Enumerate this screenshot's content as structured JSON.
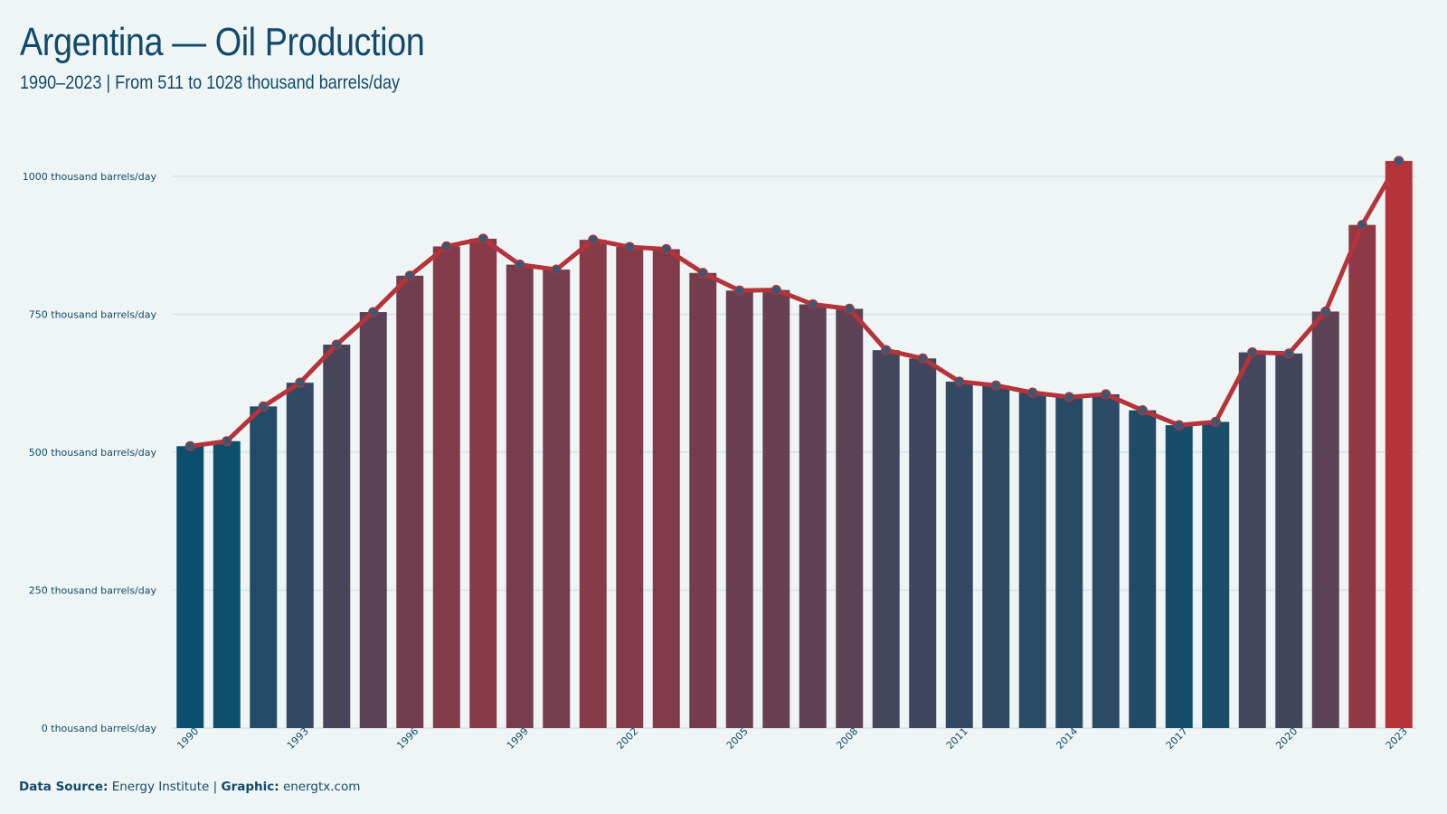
{
  "header": {
    "title": "Argentina — Oil Production",
    "subtitle": "1990–2023 | From 511 to 1028 thousand barrels/day"
  },
  "footer": {
    "source_label": "Data Source:",
    "source_value": "Energy Institute",
    "separator": "|",
    "graphic_label": "Graphic:",
    "graphic_value": "energtx.com"
  },
  "colors": {
    "background": "#eff5f5",
    "low": "#0b4f6e",
    "high": "#b5333a",
    "line": "#b5333a",
    "marker": "#3b5873",
    "grid": "#d7e1e3",
    "text": "#124a6b"
  },
  "chart_data": {
    "type": "bar",
    "title": "Argentina — Oil Production",
    "unit": "thousand barrels/day",
    "categories": [
      "1990",
      "1991",
      "1992",
      "1993",
      "1994",
      "1995",
      "1996",
      "1997",
      "1998",
      "1999",
      "2000",
      "2001",
      "2002",
      "2003",
      "2004",
      "2005",
      "2006",
      "2007",
      "2008",
      "2009",
      "2010",
      "2011",
      "2012",
      "2013",
      "2014",
      "2015",
      "2016",
      "2017",
      "2018",
      "2019",
      "2020",
      "2021",
      "2022",
      "2023"
    ],
    "values": [
      511,
      520,
      583,
      626,
      695,
      754,
      820,
      873,
      887,
      840,
      831,
      885,
      872,
      868,
      825,
      793,
      794,
      768,
      760,
      685,
      670,
      628,
      621,
      608,
      600,
      605,
      576,
      549,
      555,
      681,
      679,
      755,
      912,
      1028
    ],
    "series_overlay": {
      "type": "line",
      "values": "same as bars"
    },
    "ylim": [
      0,
      1050
    ],
    "yticks": [
      0,
      250,
      500,
      750,
      1000
    ],
    "ytick_labels": [
      "0 thousand barrels/day",
      "250 thousand barrels/day",
      "500 thousand barrels/day",
      "750 thousand barrels/day",
      "1000 thousand barrels/day"
    ],
    "xtick_labels": [
      "1990",
      "1993",
      "1996",
      "1999",
      "2002",
      "2005",
      "2008",
      "2011",
      "2014",
      "2017",
      "2020",
      "2023"
    ],
    "grid": true,
    "legend": "none"
  }
}
